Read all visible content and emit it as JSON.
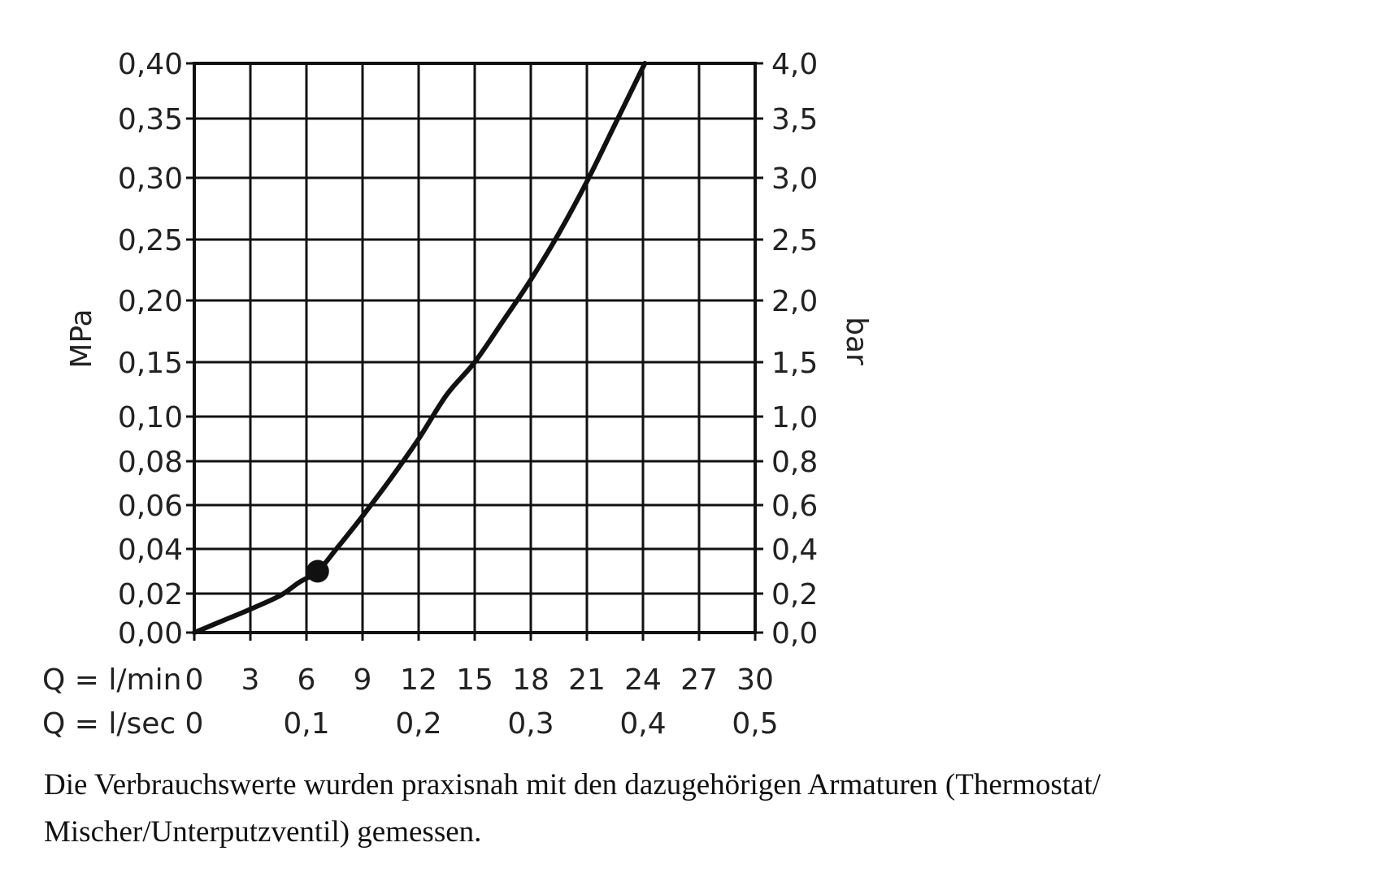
{
  "chart_data": {
    "type": "line",
    "ylabel_left": "MPa",
    "ylabel_right": "bar",
    "y_ticks_left": [
      "0,00",
      "0,02",
      "0,04",
      "0,06",
      "0,08",
      "0,10",
      "0,15",
      "0,20",
      "0,25",
      "0,30",
      "0,35",
      "0,40"
    ],
    "y_ticks_right": [
      "0,0",
      "0,2",
      "0,4",
      "0,6",
      "0,8",
      "1,0",
      "1,5",
      "2,0",
      "2,5",
      "3,0",
      "3,5",
      "4,0"
    ],
    "x_row1_label": "Q = l/min",
    "x_row1_ticks": [
      "0",
      "3",
      "6",
      "9",
      "12",
      "15",
      "18",
      "21",
      "24",
      "27",
      "30"
    ],
    "x_row2_label": "Q = l/sec",
    "x_row2_ticks": [
      "0",
      "0,1",
      "0,2",
      "0,3",
      "0,4",
      "0,5"
    ],
    "xlim": [
      0,
      30
    ],
    "ylim": [
      0,
      0.4
    ],
    "grid": true,
    "series": [
      {
        "x": [
          0,
          1.5,
          3,
          4.6,
          5.6,
          6.6,
          7.6,
          9,
          10.5,
          12,
          13.5,
          15,
          16.5,
          18,
          19.5,
          21,
          22.5,
          24.1
        ],
        "y": [
          0,
          0.006,
          0.012,
          0.019,
          0.025,
          0.03,
          0.04,
          0.055,
          0.072,
          0.09,
          0.12,
          0.15,
          0.183,
          0.217,
          0.255,
          0.297,
          0.345,
          0.4
        ]
      }
    ],
    "markers": [
      {
        "x": 6.6,
        "y": 0.03
      }
    ]
  },
  "caption": {
    "line1": "Die Verbrauchswerte wurden praxisnah mit den dazugehörigen Armaturen (Thermostat/",
    "line2": "Mischer/Unterputzventil) gemessen."
  }
}
